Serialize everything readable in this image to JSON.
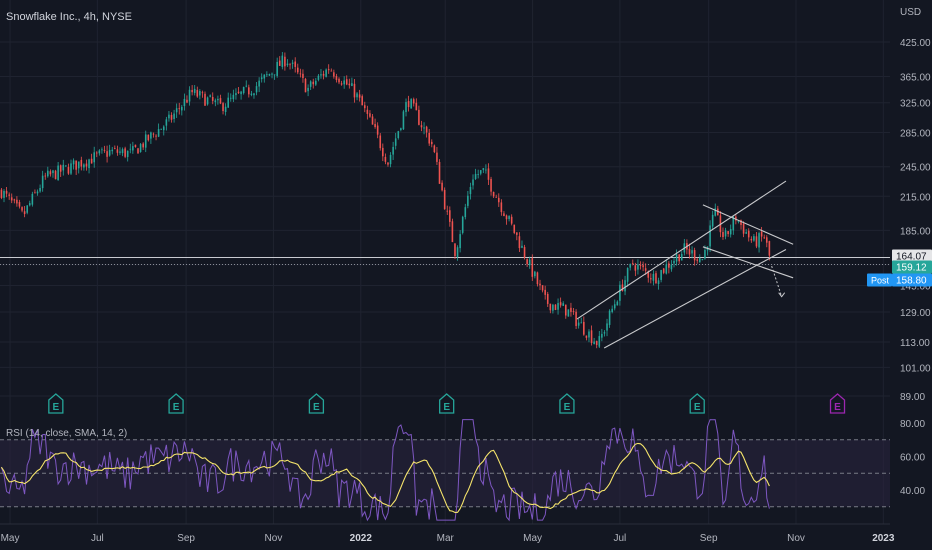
{
  "header": {
    "title": "Snowflake Inc., 4h, NYSE",
    "currency": "USD"
  },
  "colors": {
    "background": "#131722",
    "grid": "#1f2330",
    "up": "#26a69a",
    "down": "#ef5350",
    "channel": "#c8c9cc",
    "rsi_line": "#7e57c2",
    "rsi_ma": "#f5e46b",
    "rsi_band": "#2a2540",
    "price_tag_dark": "#e5e6e8",
    "price_tag_green": "#26a69a",
    "post_tag": "#2196f3",
    "earnings_past": "#26a69a",
    "earnings_future": "#9c27b0"
  },
  "chart_data": [
    {
      "type": "candlestick",
      "title": "Snowflake Inc., 4h, NYSE",
      "ylabel": "USD",
      "yscale": "log",
      "ylim": [
        80,
        440
      ],
      "yticks": [
        425,
        365,
        325,
        285,
        245,
        215,
        185,
        159,
        145,
        129,
        113,
        101,
        89
      ],
      "ytick_labels": [
        "425.00",
        "365.00",
        "325.00",
        "285.00",
        "245.00",
        "215.00",
        "185.00",
        "159.00",
        "145.00",
        "129.00",
        "113.00",
        "101.00",
        "89.00"
      ],
      "x_ticks": [
        "May",
        "Jul",
        "Sep",
        "Nov",
        "2022",
        "Mar",
        "May",
        "Jul",
        "Sep",
        "Nov",
        "2023"
      ],
      "price_path": [
        {
          "date": "2021-04-25",
          "price": 220
        },
        {
          "date": "2021-05-10",
          "price": 197
        },
        {
          "date": "2021-05-25",
          "price": 233
        },
        {
          "date": "2021-06-20",
          "price": 250
        },
        {
          "date": "2021-07-10",
          "price": 262
        },
        {
          "date": "2021-07-25",
          "price": 260
        },
        {
          "date": "2021-08-20",
          "price": 300
        },
        {
          "date": "2021-09-05",
          "price": 340
        },
        {
          "date": "2021-09-25",
          "price": 320
        },
        {
          "date": "2021-10-20",
          "price": 350
        },
        {
          "date": "2021-11-10",
          "price": 395
        },
        {
          "date": "2021-11-25",
          "price": 345
        },
        {
          "date": "2021-12-10",
          "price": 380
        },
        {
          "date": "2021-12-28",
          "price": 340
        },
        {
          "date": "2022-01-10",
          "price": 290
        },
        {
          "date": "2022-01-20",
          "price": 250
        },
        {
          "date": "2022-02-03",
          "price": 330
        },
        {
          "date": "2022-02-20",
          "price": 270
        },
        {
          "date": "2022-03-02",
          "price": 200
        },
        {
          "date": "2022-03-08",
          "price": 168
        },
        {
          "date": "2022-03-20",
          "price": 235
        },
        {
          "date": "2022-03-28",
          "price": 240
        },
        {
          "date": "2022-04-20",
          "price": 180
        },
        {
          "date": "2022-05-10",
          "price": 135
        },
        {
          "date": "2022-05-25",
          "price": 130
        },
        {
          "date": "2022-06-16",
          "price": 112
        },
        {
          "date": "2022-06-30",
          "price": 140
        },
        {
          "date": "2022-07-10",
          "price": 160
        },
        {
          "date": "2022-07-25",
          "price": 150
        },
        {
          "date": "2022-08-15",
          "price": 170
        },
        {
          "date": "2022-08-28",
          "price": 163
        },
        {
          "date": "2022-09-05",
          "price": 200
        },
        {
          "date": "2022-09-12",
          "price": 178
        },
        {
          "date": "2022-09-20",
          "price": 196
        },
        {
          "date": "2022-10-02",
          "price": 175
        },
        {
          "date": "2022-10-10",
          "price": 180
        },
        {
          "date": "2022-10-15",
          "price": 158
        }
      ],
      "channel_lines": [
        {
          "from": {
            "date": "2022-06-01",
            "price": 125
          },
          "to": {
            "date": "2022-10-25",
            "price": 230
          }
        },
        {
          "from": {
            "date": "2022-06-20",
            "price": 110
          },
          "to": {
            "date": "2022-10-25",
            "price": 170
          }
        },
        {
          "from": {
            "date": "2022-08-28",
            "price": 207
          },
          "to": {
            "date": "2022-10-30",
            "price": 174
          }
        },
        {
          "from": {
            "date": "2022-08-28",
            "price": 172
          },
          "to": {
            "date": "2022-10-30",
            "price": 150
          }
        }
      ],
      "projection": {
        "from": {
          "date": "2022-10-15",
          "price": 158
        },
        "to": {
          "date": "2022-10-22",
          "price": 138
        }
      },
      "horizontal_levels": [
        164.07,
        159.12
      ],
      "last_price_labels": [
        {
          "label": "",
          "value": "164.07"
        },
        {
          "label": "",
          "value": "159.12"
        },
        {
          "label": "Post",
          "value": "158.80"
        }
      ],
      "earnings_markers": [
        {
          "date": "2021-06-02",
          "label": "E",
          "status": "past"
        },
        {
          "date": "2021-08-25",
          "label": "E",
          "status": "past"
        },
        {
          "date": "2021-12-01",
          "label": "E",
          "status": "past"
        },
        {
          "date": "2022-03-02",
          "label": "E",
          "status": "past"
        },
        {
          "date": "2022-05-25",
          "label": "E",
          "status": "past"
        },
        {
          "date": "2022-08-24",
          "label": "E",
          "status": "past"
        },
        {
          "date": "2022-11-30",
          "label": "E",
          "status": "upcoming"
        }
      ]
    },
    {
      "type": "line",
      "title": "RSI (14, close, SMA, 14, 2)",
      "ylim": [
        20,
        85
      ],
      "yticks": [
        80,
        60,
        40
      ],
      "ytick_labels": [
        "80.00",
        "60.00",
        "40.00"
      ],
      "bands": {
        "upper": 70,
        "middle": 50,
        "lower": 30
      },
      "series": [
        {
          "name": "RSI",
          "role": "rsi"
        },
        {
          "name": "SMA",
          "role": "ma"
        }
      ]
    }
  ]
}
